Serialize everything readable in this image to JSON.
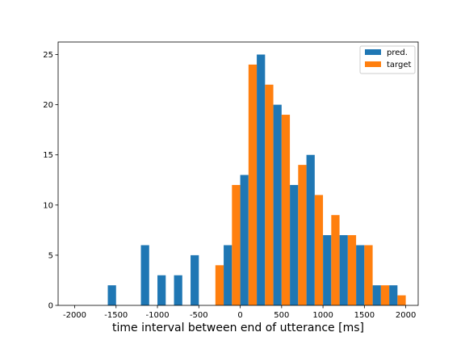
{
  "chart_data": {
    "type": "bar",
    "title": "",
    "xlabel": "time interval between end of utterance [ms]",
    "ylabel": "",
    "xlim": [
      -2200,
      2150
    ],
    "ylim": [
      0,
      26.25
    ],
    "xticks": [
      -2000,
      -1500,
      -1000,
      -500,
      0,
      500,
      1000,
      1500,
      2000
    ],
    "yticks": [
      0,
      5,
      10,
      15,
      20,
      25
    ],
    "grid": false,
    "legend_position": "top-right",
    "bin_edges": [
      -2000,
      -1800,
      -1600,
      -1400,
      -1200,
      -1000,
      -800,
      -600,
      -400,
      -200,
      0,
      200,
      400,
      600,
      800,
      1000,
      1200,
      1400,
      1600,
      1800,
      2000
    ],
    "series": [
      {
        "name": "pred.",
        "color": "#1f77b4",
        "values": [
          0,
          0,
          2,
          0,
          6,
          3,
          3,
          5,
          0,
          6,
          13,
          25,
          20,
          12,
          15,
          7,
          7,
          6,
          2,
          2
        ]
      },
      {
        "name": "target",
        "color": "#ff7f0e",
        "values": [
          0,
          0,
          0,
          0,
          0,
          0,
          0,
          0,
          4,
          12,
          24,
          22,
          19,
          14,
          11,
          9,
          7,
          6,
          2,
          1
        ]
      }
    ]
  }
}
